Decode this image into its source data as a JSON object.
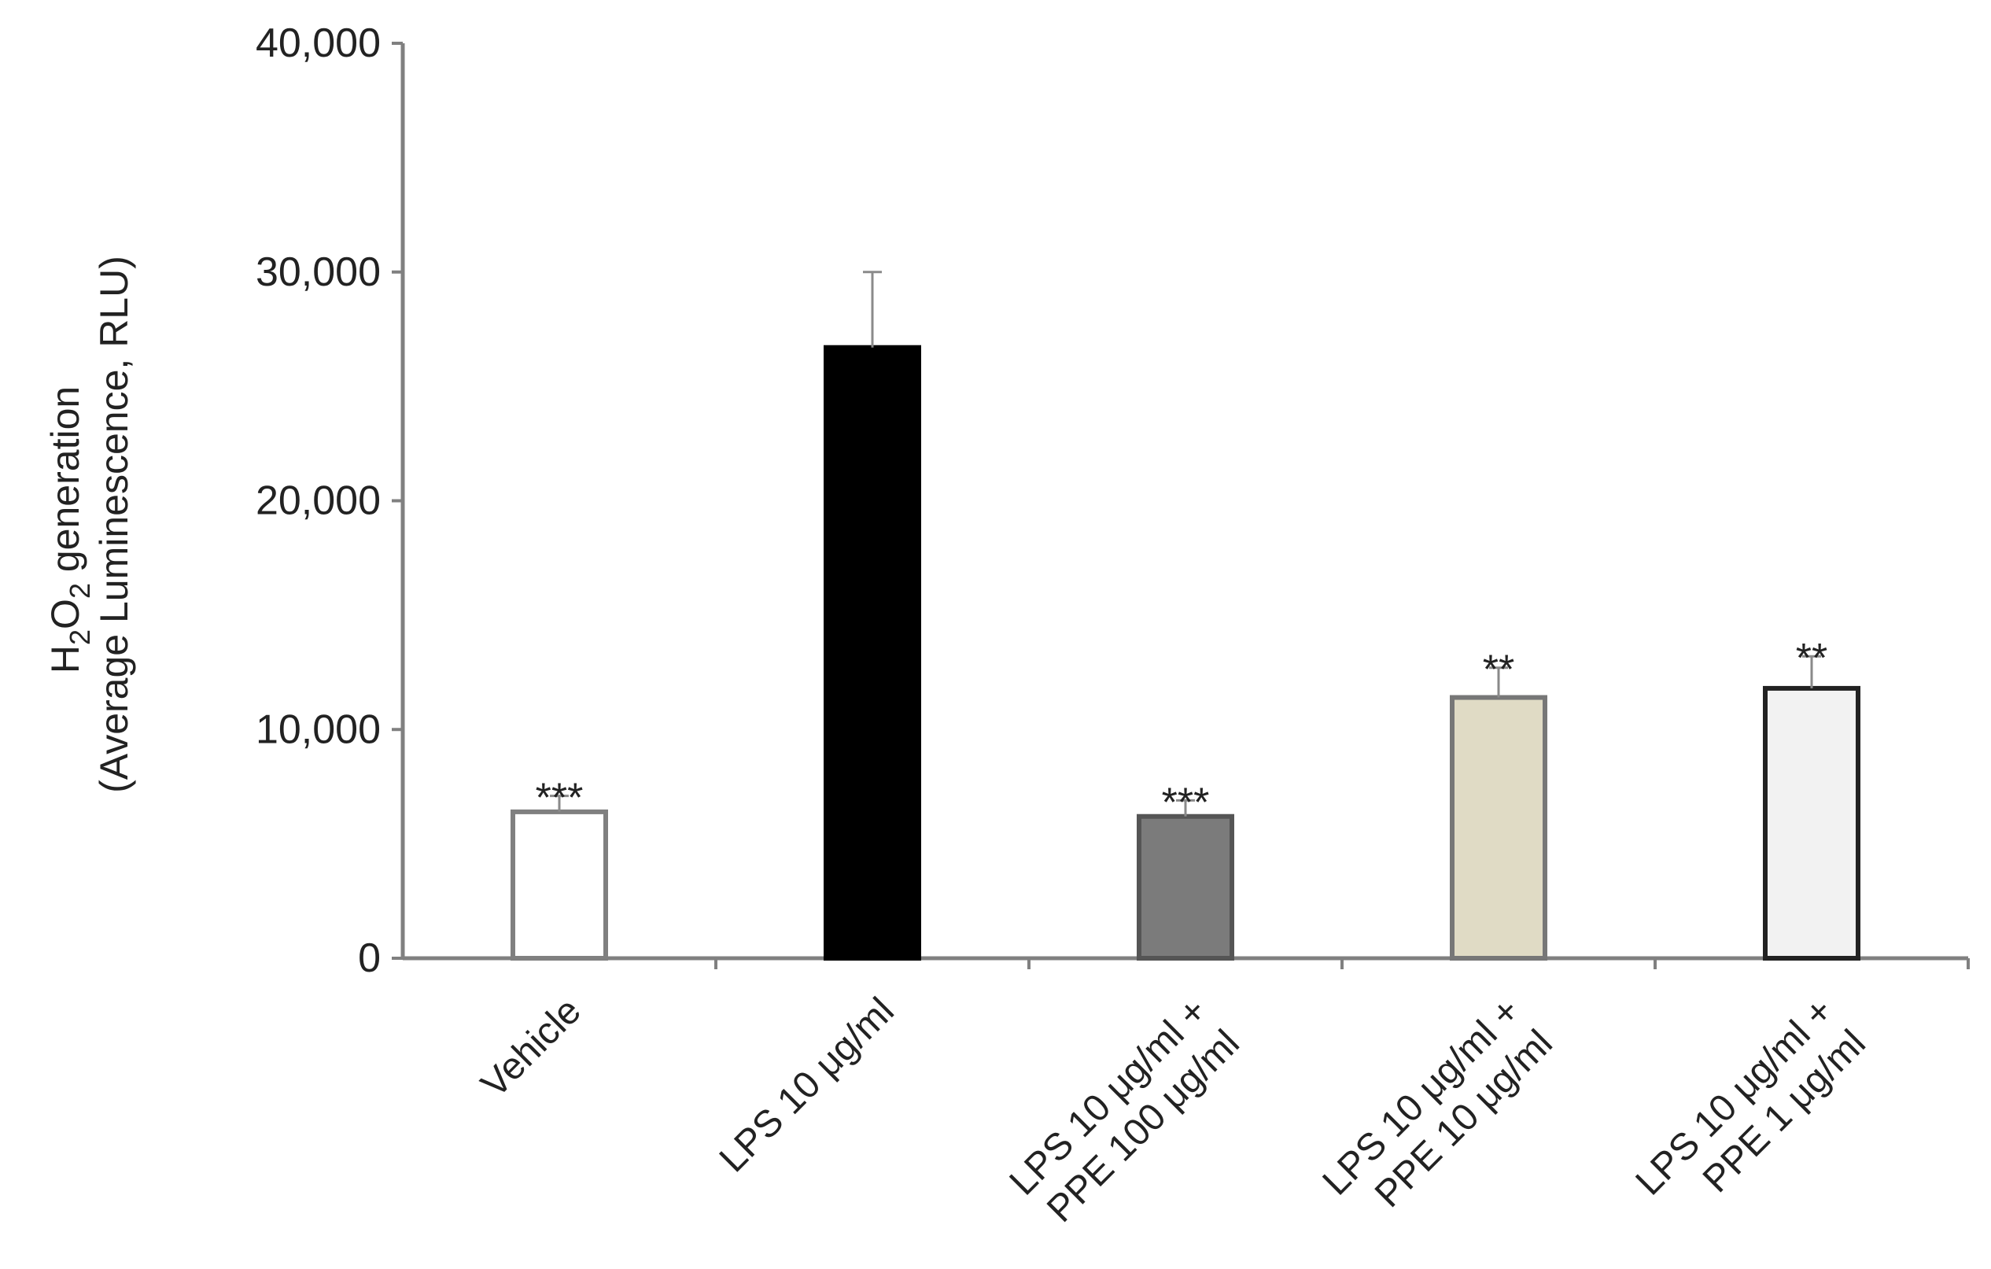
{
  "chart_data": {
    "type": "bar",
    "title": "",
    "ylabel": {
      "line1_prefix": "H",
      "line1_sub1": "2",
      "line1_mid": "O",
      "line1_sub2": "2",
      "line1_suffix": " generation",
      "line2": "(Average Luminescence, RLU)"
    },
    "ylim": [
      0,
      40000
    ],
    "yticks": [
      {
        "value": 0,
        "label": "0"
      },
      {
        "value": 10000,
        "label": "10,000"
      },
      {
        "value": 20000,
        "label": "20,000"
      },
      {
        "value": 30000,
        "label": "30,000"
      },
      {
        "value": 40000,
        "label": "40,000"
      }
    ],
    "grid": false,
    "bars": [
      {
        "category_lines": [
          "Vehicle"
        ],
        "value": 6400,
        "error": 700,
        "significance": "***",
        "fill": "#ffffff",
        "stroke": "#808080"
      },
      {
        "category_lines": [
          "LPS 10 μg/ml"
        ],
        "value": 26700,
        "error": 3300,
        "significance": "",
        "fill": "#000000",
        "stroke": "#000000"
      },
      {
        "category_lines": [
          "LPS 10 μg/ml  +",
          "PPE 100 μg/ml"
        ],
        "value": 6200,
        "error": 700,
        "significance": "***",
        "fill": "#7b7b7b",
        "stroke": "#555555"
      },
      {
        "category_lines": [
          "LPS 10 μg/ml  +",
          "PPE 10 μg/ml"
        ],
        "value": 11400,
        "error": 1300,
        "significance": "**",
        "fill": "#e0dbc5",
        "stroke": "#777777"
      },
      {
        "category_lines": [
          "LPS 10 μg/ml  +",
          "PPE 1 μg/ml"
        ],
        "value": 11800,
        "error": 1400,
        "significance": "**",
        "fill": "#f2f2f2",
        "stroke": "#222222"
      }
    ]
  }
}
